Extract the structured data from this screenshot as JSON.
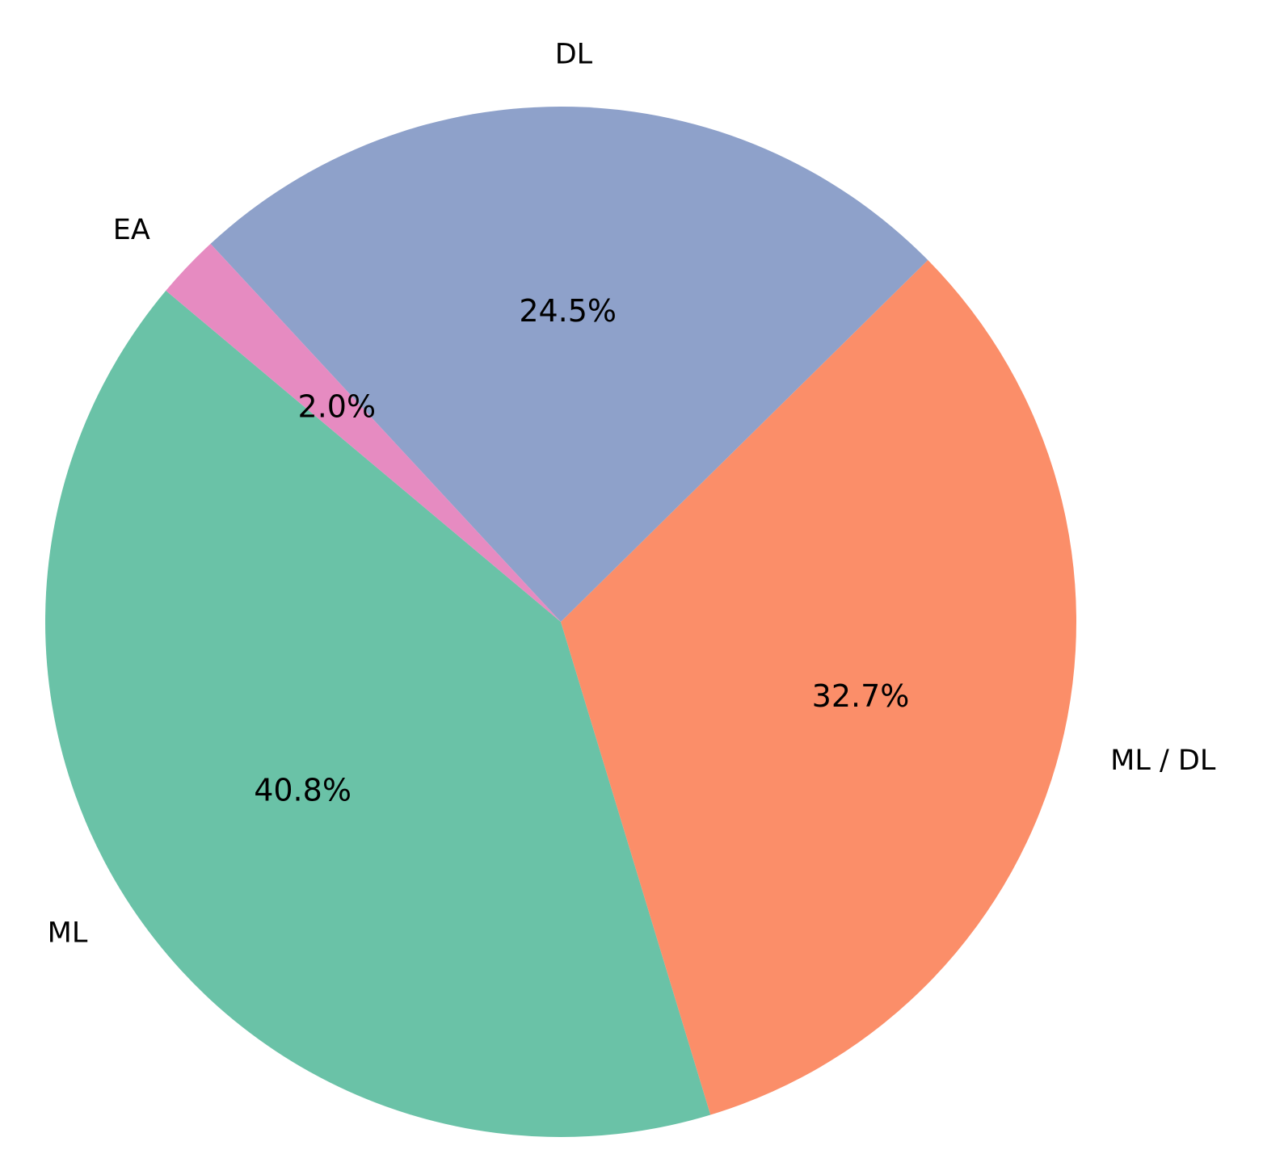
{
  "chart_data": {
    "type": "pie",
    "title": "",
    "start_angle_deg": 140,
    "direction": "counterclockwise",
    "slices": [
      {
        "label": "ML",
        "value": 40.8,
        "pct_label": "40.8%",
        "color": "#6ac2a7"
      },
      {
        "label": "ML / DL",
        "value": 32.7,
        "pct_label": "32.7%",
        "color": "#fb8e69"
      },
      {
        "label": "DL",
        "value": 24.5,
        "pct_label": "24.5%",
        "color": "#8ea1ca"
      },
      {
        "label": "EA",
        "value": 2.0,
        "pct_label": "2.0%",
        "color": "#e68bc1"
      }
    ]
  }
}
